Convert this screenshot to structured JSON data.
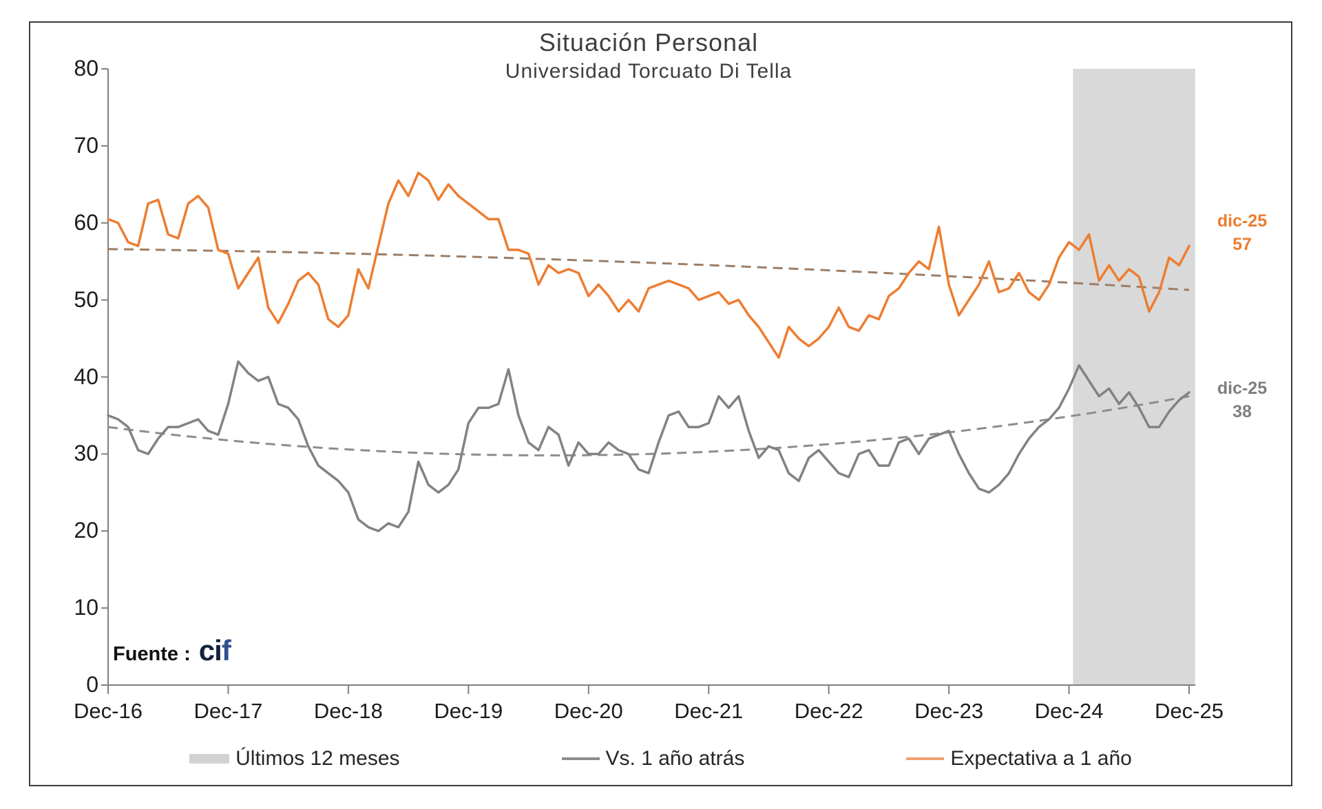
{
  "figure": {
    "title": "Situación Personal",
    "subtitle": "Universidad Torcuato Di Tella",
    "source_prefix": "Fuente :",
    "source_logo_ci": "ci",
    "source_logo_f": "f",
    "source_logo_ci_color": "#14213d",
    "source_logo_f_color": "#31508f"
  },
  "chart_data": {
    "type": "line",
    "title": "Situación Personal",
    "subtitle": "Universidad Torcuato Di Tella",
    "x_start": "Dec-16",
    "x_end": "Dec-25",
    "x_tick_labels": [
      "Dec-16",
      "Dec-17",
      "Dec-18",
      "Dec-19",
      "Dec-20",
      "Dec-21",
      "Dec-22",
      "Dec-23",
      "Dec-24",
      "Dec-25"
    ],
    "y_ticks": [
      0,
      10,
      20,
      30,
      40,
      50,
      60,
      70,
      80
    ],
    "ylim": [
      0,
      80
    ],
    "grid": "off",
    "axis_color": "#808080",
    "series": [
      {
        "name": "Vs. 1 año atrás",
        "color": "#828282",
        "values": [
          35,
          34.5,
          33.5,
          30.5,
          30,
          32,
          33.5,
          33.5,
          34,
          34.5,
          33,
          32.5,
          36.5,
          42,
          40.5,
          39.5,
          40,
          36.5,
          36,
          34.5,
          31,
          28.5,
          27.5,
          26.5,
          25,
          21.5,
          20.5,
          20,
          21,
          20.5,
          22.5,
          29,
          26,
          25,
          26,
          28,
          34,
          36,
          36,
          36.5,
          41,
          35,
          31.5,
          30.5,
          33.5,
          32.5,
          28.5,
          31.5,
          30,
          30,
          31.5,
          30.5,
          30,
          28,
          27.5,
          31.5,
          35,
          35.5,
          33.5,
          33.5,
          34,
          37.5,
          36,
          37.5,
          33,
          29.5,
          31,
          30.5,
          27.5,
          26.5,
          29.5,
          30.5,
          29,
          27.5,
          27,
          30,
          30.5,
          28.5,
          28.5,
          31.5,
          32,
          30,
          32,
          32.5,
          33,
          30,
          27.5,
          25.5,
          25,
          26,
          27.5,
          30,
          32,
          33.5,
          34.5,
          36,
          38.5,
          41.5,
          39.5,
          37.5,
          38.5,
          36.5,
          38,
          36,
          33.5,
          33.5,
          35.5,
          37,
          38
        ]
      },
      {
        "name": "Expectativa a 1 año",
        "color": "#ED7D31",
        "values": [
          60.5,
          60,
          57.5,
          57,
          62.5,
          63,
          58.5,
          58,
          62.5,
          63.5,
          62,
          56.5,
          56,
          51.5,
          53.5,
          55.5,
          49,
          47,
          49.5,
          52.5,
          53.5,
          52,
          47.5,
          46.5,
          48,
          54,
          51.5,
          57,
          62.5,
          65.5,
          63.5,
          66.5,
          65.5,
          63,
          65,
          63.5,
          62.5,
          61.5,
          60.5,
          60.5,
          56.5,
          56.5,
          56,
          52,
          54.5,
          53.5,
          54,
          53.5,
          50.5,
          52,
          50.5,
          48.5,
          50,
          48.5,
          51.5,
          52,
          52.5,
          52,
          51.5,
          50,
          50.5,
          51,
          49.5,
          50,
          48,
          46.5,
          44.5,
          42.5,
          46.5,
          45,
          44,
          45,
          46.5,
          49,
          46.5,
          46,
          48,
          47.5,
          50.5,
          51.5,
          53.5,
          55,
          54,
          59.5,
          52,
          48,
          50,
          52,
          55,
          51,
          51.5,
          53.5,
          51,
          50,
          52,
          55.5,
          57.5,
          56.5,
          58.5,
          52.5,
          54.5,
          52.5,
          54,
          53,
          48.5,
          51,
          55.5,
          54.5,
          57
        ]
      }
    ],
    "trendlines": [
      {
        "series": "Vs. 1 año atrás",
        "style": "dashed",
        "color": "#8c8c8c",
        "start_value": 33.5,
        "control_value": 24.5,
        "end_value": 37.5
      },
      {
        "series": "Expectativa a 1 año",
        "style": "dashed",
        "color": "#9c7e66",
        "start_value": 56.6,
        "control_value": 55.7,
        "end_value": 51.3
      }
    ],
    "shaded_region": {
      "label": "Últimos 12 meses",
      "start_month_index": 96.4,
      "end_month_index": 108.6,
      "color": "#d9d9d9"
    },
    "end_labels": [
      {
        "series": "Expectativa a 1 año",
        "line1": "dic-25",
        "line2": "57",
        "value": 57,
        "color": "#ED7D31",
        "dy": -52
      },
      {
        "series": "Vs. 1 año atrás",
        "line1": "dic-25",
        "line2": "38",
        "value": 38,
        "color": "#7f7f7f",
        "dy": -22
      }
    ],
    "legend": [
      {
        "label": "Últimos 12 meses",
        "type": "band",
        "color": "#d2d2d2"
      },
      {
        "label": "Vs. 1 año atrás",
        "type": "line",
        "color": "#8c8c8c"
      },
      {
        "label": "Expectativa a 1 año",
        "type": "line",
        "color": "#efa071"
      }
    ],
    "legend_position": "bottom"
  }
}
